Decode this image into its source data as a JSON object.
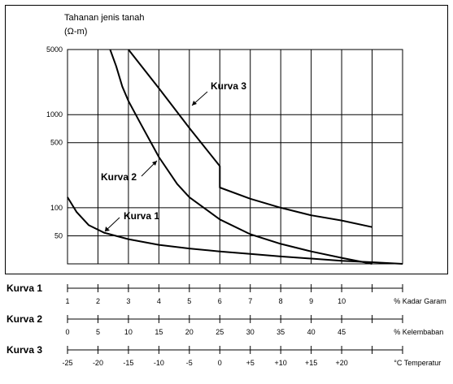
{
  "chart_data": {
    "type": "line",
    "title": "Tahanan jenis tanah",
    "ylabel": "(Ω-m)",
    "yscale": "log",
    "ylim": [
      25,
      5000
    ],
    "y_ticks": [
      5000,
      1000,
      500,
      100,
      50
    ],
    "y_tick_labels": [
      "5000",
      "1000",
      "500",
      "100",
      "50"
    ],
    "grid": true,
    "series": [
      {
        "name": "Kurva 1",
        "axis": "Kadar Garam",
        "x": [
          0,
          0.3,
          0.7,
          1.2,
          2,
          3,
          4,
          5,
          6,
          7,
          8,
          9,
          10,
          11
        ],
        "y": [
          130,
          90,
          65,
          54,
          46,
          40,
          36.5,
          34,
          32,
          30,
          28.5,
          27,
          26,
          25
        ]
      },
      {
        "name": "Kurva 2",
        "axis": "Kelembaban",
        "x": [
          7,
          8,
          9,
          10,
          12,
          15,
          18,
          20,
          25,
          30,
          35,
          40,
          45,
          50
        ],
        "y": [
          5000,
          3300,
          2000,
          1400,
          800,
          350,
          180,
          130,
          75,
          52,
          41,
          34,
          29,
          25
        ]
      },
      {
        "name": "Kurva 3",
        "axis": "Temperatur",
        "x": [
          -15,
          -10,
          -5,
          0,
          0,
          5,
          10,
          15,
          20,
          25
        ],
        "y": [
          5000,
          1920,
          720,
          280,
          165,
          125,
          100,
          83,
          73,
          62
        ]
      }
    ],
    "scales": [
      {
        "row_label": "Kurva 1",
        "ticks": [
          "1",
          "2",
          "3",
          "4",
          "5",
          "6",
          "7",
          "8",
          "9",
          "10"
        ],
        "unit": "% Kadar Garam"
      },
      {
        "row_label": "Kurva 2",
        "ticks": [
          "0",
          "5",
          "10",
          "15",
          "20",
          "25",
          "30",
          "35",
          "40",
          "45"
        ],
        "unit": "% Kelembaban"
      },
      {
        "row_label": "Kurva 3",
        "ticks": [
          "-25",
          "-20",
          "-15",
          "-10",
          "-5",
          "0",
          "+5",
          "+10",
          "+15",
          "+20"
        ],
        "unit": "°C Temperatur"
      }
    ]
  }
}
